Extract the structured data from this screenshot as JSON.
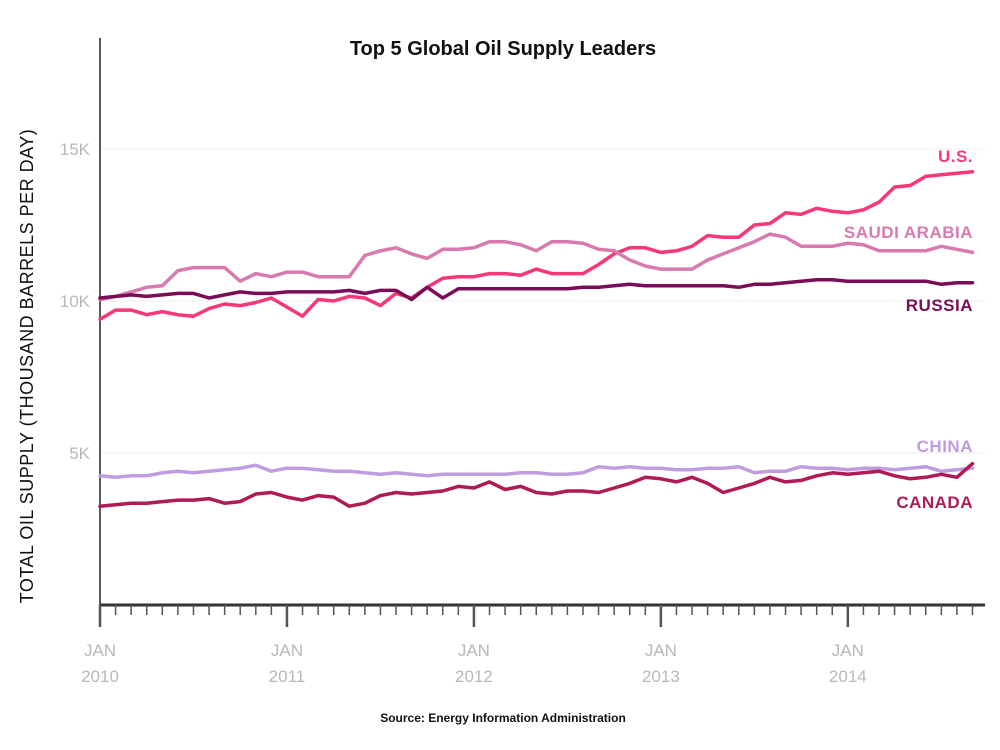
{
  "chart_data": {
    "type": "line",
    "title": "Top 5 Global Oil Supply Leaders",
    "ylabel": "TOTAL OIL SUPPLY (THOUSAND BARRELS PER DAY)",
    "xlabel": "",
    "source": "Source: Energy Information Administration",
    "ylim": [
      0,
      18500
    ],
    "yticks": [
      {
        "value": 5000,
        "label": "5K"
      },
      {
        "value": 10000,
        "label": "10K"
      },
      {
        "value": 15000,
        "label": "15K"
      }
    ],
    "xticks": [
      {
        "index": 0,
        "month": "JAN",
        "year": "2010"
      },
      {
        "index": 12,
        "month": "JAN",
        "year": "2011"
      },
      {
        "index": 24,
        "month": "JAN",
        "year": "2012"
      },
      {
        "index": 36,
        "month": "JAN",
        "year": "2013"
      },
      {
        "index": 48,
        "month": "JAN",
        "year": "2014"
      }
    ],
    "x_start": "Jan 2010",
    "x_end": "Sep 2014",
    "series": [
      {
        "name": "U.S.",
        "color": "#f7377b",
        "values": [
          9400,
          9700,
          9700,
          9550,
          9650,
          9550,
          9500,
          9750,
          9900,
          9850,
          9950,
          10100,
          9800,
          9500,
          10050,
          10000,
          10150,
          10100,
          9850,
          10250,
          10100,
          10450,
          10750,
          10800,
          10800,
          10900,
          10900,
          10850,
          11050,
          10900,
          10900,
          10900,
          11200,
          11550,
          11750,
          11750,
          11600,
          11650,
          11800,
          12150,
          12100,
          12100,
          12500,
          12550,
          12900,
          12850,
          13050,
          12950,
          12900,
          13000,
          13250,
          13750,
          13800,
          14100,
          14150,
          14200,
          14250
        ]
      },
      {
        "name": "SAUDI ARABIA",
        "color": "#d97aae",
        "values": [
          10050,
          10150,
          10300,
          10450,
          10500,
          11000,
          11100,
          11100,
          11100,
          10650,
          10900,
          10800,
          10950,
          10950,
          10800,
          10800,
          10800,
          11500,
          11650,
          11750,
          11550,
          11400,
          11700,
          11700,
          11750,
          11950,
          11950,
          11850,
          11650,
          11950,
          11950,
          11900,
          11700,
          11650,
          11350,
          11150,
          11050,
          11050,
          11050,
          11350,
          11550,
          11750,
          11950,
          12200,
          12100,
          11800,
          11800,
          11800,
          11900,
          11850,
          11650,
          11650,
          11650,
          11650,
          11800,
          11700,
          11600
        ]
      },
      {
        "name": "RUSSIA",
        "color": "#7a0d57",
        "values": [
          10100,
          10150,
          10200,
          10150,
          10200,
          10250,
          10250,
          10100,
          10200,
          10300,
          10250,
          10250,
          10300,
          10300,
          10300,
          10300,
          10350,
          10250,
          10350,
          10350,
          10050,
          10450,
          10100,
          10400,
          10400,
          10400,
          10400,
          10400,
          10400,
          10400,
          10400,
          10450,
          10450,
          10500,
          10550,
          10500,
          10500,
          10500,
          10500,
          10500,
          10500,
          10450,
          10550,
          10550,
          10600,
          10650,
          10700,
          10700,
          10650,
          10650,
          10650,
          10650,
          10650,
          10650,
          10550,
          10600,
          10600
        ]
      },
      {
        "name": "CHINA",
        "color": "#c19be0",
        "values": [
          4250,
          4200,
          4250,
          4250,
          4350,
          4400,
          4350,
          4400,
          4450,
          4500,
          4600,
          4400,
          4500,
          4500,
          4450,
          4400,
          4400,
          4350,
          4300,
          4350,
          4300,
          4250,
          4300,
          4300,
          4300,
          4300,
          4300,
          4350,
          4350,
          4300,
          4300,
          4350,
          4550,
          4500,
          4550,
          4500,
          4500,
          4450,
          4450,
          4500,
          4500,
          4550,
          4350,
          4400,
          4400,
          4550,
          4500,
          4500,
          4450,
          4500,
          4500,
          4450,
          4500,
          4550,
          4400,
          4450,
          4500
        ]
      },
      {
        "name": "CANADA",
        "color": "#b01a55",
        "values": [
          3250,
          3300,
          3350,
          3350,
          3400,
          3450,
          3450,
          3500,
          3350,
          3400,
          3650,
          3700,
          3550,
          3450,
          3600,
          3550,
          3250,
          3350,
          3600,
          3700,
          3650,
          3700,
          3750,
          3900,
          3850,
          4050,
          3800,
          3900,
          3700,
          3650,
          3750,
          3750,
          3700,
          3850,
          4000,
          4200,
          4150,
          4050,
          4200,
          4000,
          3700,
          3850,
          4000,
          4200,
          4050,
          4100,
          4250,
          4350,
          4300,
          4350,
          4400,
          4250,
          4150,
          4200,
          4300,
          4200,
          4650
        ]
      }
    ]
  }
}
